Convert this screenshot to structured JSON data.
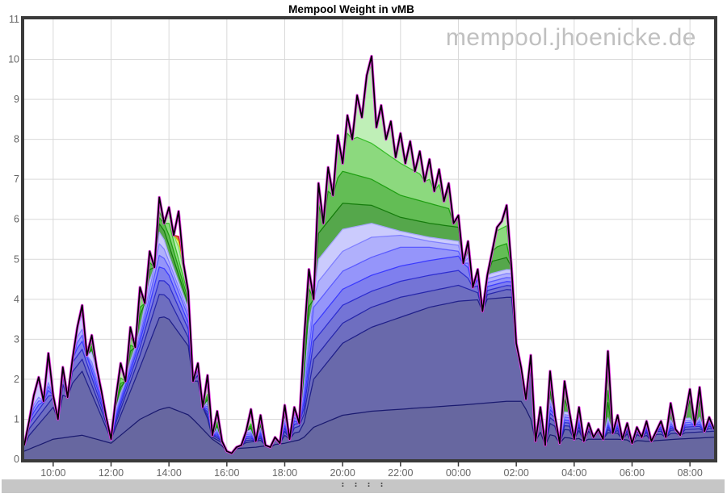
{
  "header": {
    "title": "Mempool Weight in vMB",
    "watermark": "mempool.jhoenicke.de"
  },
  "scrollbar": {
    "handle": ": : : :"
  },
  "chart_data": {
    "type": "area",
    "stacked": true,
    "title": "Mempool Weight in vMB",
    "ylabel": "",
    "xlabel": "",
    "ylim": [
      0,
      11
    ],
    "x_span_hours": 23.8333,
    "sample_step_hours": 0.166667,
    "grid": true,
    "legend": "none",
    "y_ticks": [
      "0",
      "1",
      "2",
      "3",
      "4",
      "5",
      "6",
      "7",
      "8",
      "9",
      "10",
      "11"
    ],
    "x_ticks": [
      {
        "t": 1,
        "label": "10:00"
      },
      {
        "t": 3,
        "label": "12:00"
      },
      {
        "t": 5,
        "label": "14:00"
      },
      {
        "t": 7,
        "label": "16:00"
      },
      {
        "t": 9,
        "label": "18:00"
      },
      {
        "t": 11,
        "label": "20:00"
      },
      {
        "t": 13,
        "label": "22:00"
      },
      {
        "t": 15,
        "label": "00:00"
      },
      {
        "t": 17,
        "label": "02:00"
      },
      {
        "t": 19,
        "label": "04:00"
      },
      {
        "t": 21,
        "label": "06:00"
      },
      {
        "t": 23,
        "label": "08:00"
      }
    ],
    "total": [
      0.35,
      0.95,
      1.6,
      2.05,
      1.45,
      2.65,
      1.6,
      1.0,
      2.3,
      1.55,
      2.5,
      3.3,
      3.85,
      2.6,
      3.1,
      2.3,
      1.7,
      1.05,
      0.5,
      1.55,
      2.4,
      1.95,
      3.3,
      2.8,
      4.3,
      3.9,
      5.2,
      4.8,
      6.55,
      5.9,
      6.3,
      5.6,
      6.2,
      4.9,
      4.2,
      1.95,
      2.4,
      1.3,
      2.1,
      0.6,
      1.2,
      0.45,
      0.2,
      0.15,
      0.3,
      0.35,
      0.7,
      1.25,
      0.45,
      1.1,
      0.35,
      0.3,
      0.55,
      0.4,
      1.35,
      0.5,
      1.3,
      0.9,
      3.0,
      4.75,
      4.0,
      6.9,
      5.9,
      7.3,
      6.6,
      8.1,
      7.4,
      8.6,
      8.0,
      9.1,
      8.55,
      9.6,
      10.08,
      8.3,
      8.85,
      8.0,
      8.45,
      7.55,
      8.15,
      7.4,
      7.95,
      7.2,
      7.7,
      6.95,
      7.5,
      6.7,
      7.25,
      6.45,
      6.9,
      5.9,
      6.1,
      4.9,
      5.45,
      4.3,
      4.75,
      3.7,
      4.6,
      5.2,
      5.8,
      5.95,
      6.35,
      4.8,
      2.9,
      2.3,
      1.5,
      2.6,
      0.45,
      1.3,
      0.35,
      2.2,
      1.1,
      0.4,
      1.95,
      1.2,
      0.5,
      1.3,
      0.45,
      0.9,
      0.55,
      0.75,
      0.5,
      2.7,
      0.65,
      1.1,
      0.5,
      0.9,
      0.4,
      0.8,
      0.55,
      0.95,
      0.45,
      0.7,
      0.95,
      0.55,
      1.4,
      0.75,
      0.6,
      1.1,
      1.75,
      0.85,
      1.8,
      0.7,
      1.05,
      0.75
    ],
    "band_anchor_hours": [
      0,
      1,
      2,
      3,
      4,
      4.7,
      5,
      5.7,
      6.5,
      7,
      8,
      9,
      9.6,
      10,
      11,
      12,
      13,
      14,
      15,
      15.9,
      16.7,
      17.2,
      17.7,
      18.5,
      19.5,
      20.5,
      21.5,
      22.5,
      23.83
    ],
    "bands": [
      {
        "name": "band-1",
        "line": "#1a1a70",
        "fill": "#6767a0",
        "cum": [
          0.2,
          0.5,
          0.6,
          0.4,
          1.0,
          1.25,
          1.3,
          1.1,
          0.5,
          0.25,
          0.3,
          0.4,
          0.5,
          0.8,
          1.1,
          1.2,
          1.25,
          1.3,
          1.35,
          1.4,
          1.45,
          1.45,
          0.7,
          0.55,
          0.5,
          0.5,
          0.45,
          0.5,
          0.55
        ]
      },
      {
        "name": "band-2",
        "line": "#20208a",
        "fill": "#6969ab",
        "cum": [
          0.45,
          1.3,
          2.2,
          0.5,
          2.3,
          3.6,
          3.5,
          2.8,
          0.55,
          0.35,
          0.45,
          0.6,
          0.7,
          2.0,
          2.9,
          3.3,
          3.55,
          3.8,
          3.95,
          4.0,
          4.05,
          4.05,
          1.1,
          0.75,
          0.7,
          0.65,
          0.6,
          0.65,
          0.7
        ]
      },
      {
        "name": "band-3",
        "line": "#2626aa",
        "cum": [
          0.6,
          1.55,
          2.5,
          0.58,
          2.6,
          4.2,
          4.0,
          3.0,
          0.6,
          0.4,
          0.5,
          0.7,
          0.85,
          2.5,
          3.4,
          3.8,
          4.05,
          4.2,
          4.35,
          4.1,
          4.25,
          4.2,
          1.3,
          0.85,
          0.78,
          0.72,
          0.67,
          0.73,
          0.78
        ],
        "fill": "#6e6ec0"
      },
      {
        "name": "band-4",
        "line": "#2d2dd0",
        "cum": [
          0.72,
          1.75,
          2.75,
          0.64,
          2.8,
          4.55,
          4.35,
          3.2,
          0.65,
          0.45,
          0.55,
          0.78,
          0.95,
          2.95,
          3.85,
          4.2,
          4.45,
          4.6,
          4.72,
          4.2,
          4.35,
          4.3,
          1.45,
          0.93,
          0.85,
          0.78,
          0.72,
          0.79,
          0.84
        ],
        "fill": "#7474d6"
      },
      {
        "name": "band-5",
        "line": "#3a3aff",
        "cum": [
          0.82,
          1.9,
          2.95,
          0.7,
          2.95,
          4.9,
          4.6,
          3.35,
          0.7,
          0.5,
          0.6,
          0.85,
          1.05,
          3.35,
          4.25,
          4.6,
          4.83,
          4.97,
          5.08,
          4.3,
          4.45,
          4.4,
          1.58,
          1.0,
          0.9,
          0.83,
          0.77,
          0.84,
          0.9
        ],
        "fill": "#7f7fee"
      },
      {
        "name": "band-6",
        "line": "#5a5aff",
        "cum": [
          0.92,
          2.0,
          3.1,
          0.75,
          3.05,
          5.2,
          4.8,
          3.5,
          0.75,
          0.55,
          0.65,
          0.92,
          1.15,
          3.8,
          4.7,
          5.05,
          5.3,
          5.3,
          5.2,
          4.4,
          4.55,
          4.5,
          1.7,
          1.07,
          0.97,
          0.88,
          0.82,
          0.9,
          0.96
        ],
        "fill": "#9595fa"
      },
      {
        "name": "band-7",
        "line": "#7f7fff",
        "cum": [
          1.0,
          2.1,
          3.25,
          0.8,
          3.15,
          5.5,
          4.95,
          3.6,
          0.8,
          0.6,
          0.7,
          0.98,
          1.25,
          4.3,
          5.2,
          5.55,
          5.6,
          5.45,
          5.35,
          4.5,
          4.65,
          4.6,
          1.8,
          1.13,
          1.03,
          0.93,
          0.87,
          0.95,
          1.02
        ],
        "fill": "#b0b0fc"
      },
      {
        "name": "band-8",
        "line": "#a5a5ff",
        "cum": [
          1.45,
          2.75,
          3.6,
          0.85,
          3.25,
          5.8,
          5.1,
          3.7,
          0.85,
          0.65,
          0.75,
          1.05,
          1.35,
          4.85,
          5.75,
          5.9,
          5.7,
          5.55,
          5.45,
          4.6,
          4.75,
          4.7,
          1.9,
          1.2,
          1.1,
          1.0,
          0.92,
          1.0,
          1.08
        ],
        "fill": "#cbcbfd"
      },
      {
        "name": "band-9",
        "line": "#157c0c",
        "cum": [
          1.5,
          2.8,
          3.68,
          0.9,
          3.6,
          6.0,
          5.35,
          3.8,
          0.9,
          0.7,
          0.8,
          1.12,
          1.45,
          5.5,
          6.4,
          6.35,
          6.05,
          5.9,
          5.8,
          4.9,
          5.05,
          5.0,
          2.0,
          1.5,
          1.45,
          1.4,
          1.35,
          1.45,
          1.5
        ],
        "fill": "#55a74b"
      },
      {
        "name": "band-10",
        "line": "#1f9f12",
        "cum": [
          1.55,
          2.85,
          3.75,
          0.95,
          3.8,
          6.15,
          5.6,
          3.9,
          0.95,
          0.75,
          0.85,
          1.2,
          1.55,
          6.2,
          7.2,
          7.0,
          6.6,
          6.4,
          6.2,
          5.2,
          5.4,
          5.35,
          2.1,
          1.8,
          1.75,
          1.7,
          1.65,
          1.75,
          1.8
        ],
        "fill": "#63bd55"
      },
      {
        "name": "band-11",
        "line": "#37bd28",
        "cum": [
          1.6,
          2.9,
          3.85,
          1.0,
          4.1,
          6.3,
          5.9,
          4.0,
          1.0,
          0.8,
          0.9,
          1.28,
          1.65,
          7.0,
          8.2,
          7.9,
          7.4,
          7.0,
          6.6,
          5.55,
          5.85,
          5.8,
          2.2,
          2.2,
          2.15,
          2.1,
          2.05,
          2.15,
          2.2
        ],
        "fill": "#8cd97e"
      },
      {
        "name": "band-12",
        "line": "#77d966",
        "cum": [
          1.65,
          3.0,
          4.0,
          1.6,
          4.4,
          6.6,
          6.4,
          4.1,
          1.6,
          1.3,
          1.4,
          1.5,
          1.75,
          7.8,
          9.2,
          9.85,
          8.4,
          7.8,
          7.0,
          6.0,
          6.5,
          6.45,
          2.8,
          3.0,
          3.0,
          3.0,
          3.0,
          3.0,
          3.0
        ],
        "fill": "#bfefb7"
      }
    ],
    "top_extras": [
      {
        "name": "band-yellow",
        "line": "#c9c900",
        "fill": "#eded86",
        "thickness": 0.15
      },
      {
        "name": "band-red",
        "line": "#c31212",
        "fill": "#df5f5f",
        "thickness": 0.12
      }
    ],
    "outline": {
      "halo": "#e23ae2",
      "line": "#000000"
    },
    "colors": {
      "grid": "#d9d9d9",
      "border": "#3a3a3a",
      "labels": "#666666",
      "watermark": "#c0c0c0",
      "scrollbar": "#c6c6c6"
    }
  }
}
